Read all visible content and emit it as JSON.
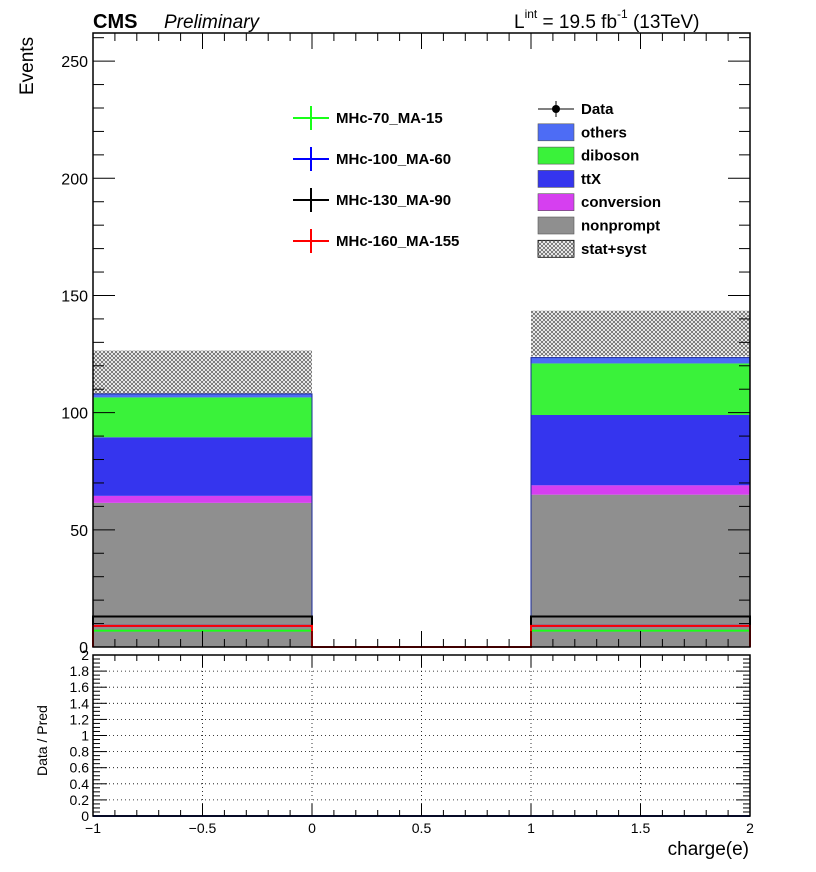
{
  "header": {
    "cms_label": "CMS",
    "preliminary_label": "Preliminary",
    "lumi_prefix": "L",
    "lumi_superscript": "int",
    "lumi_value": " = 19.5 fb",
    "lumi_exponent": "-1",
    "lumi_energy": " (13TeV)"
  },
  "colors": {
    "others": "#4d6cf5",
    "diboson": "#3af23a",
    "ttX": "#3535ee",
    "conversion": "#d63ff0",
    "nonprompt": "#8f8f8f",
    "MHc-70_MA-15": "#19ff19",
    "MHc-100_MA-60": "#0000ff",
    "MHc-130_MA-90": "#000000",
    "MHc-160_MA-155": "#ff0000"
  },
  "chart_data": [
    {
      "type": "bar",
      "stacked": true,
      "bins": [
        [
          -1,
          0
        ],
        [
          0,
          1
        ],
        [
          1,
          2
        ]
      ],
      "series": [
        {
          "name": "nonprompt",
          "values": [
            61.5,
            0,
            65
          ]
        },
        {
          "name": "conversion",
          "values": [
            3,
            0,
            4
          ]
        },
        {
          "name": "ttX",
          "values": [
            25,
            0,
            30
          ]
        },
        {
          "name": "diboson",
          "values": [
            17,
            0,
            22
          ]
        },
        {
          "name": "others",
          "values": [
            1.5,
            0,
            2.5
          ]
        }
      ],
      "uncertainty": {
        "name": "stat+syst",
        "up": [
          126.5,
          0,
          143.5
        ],
        "down": [
          108,
          0,
          124
        ]
      },
      "signals": [
        {
          "name": "MHc-70_MA-15",
          "values": [
            7,
            0,
            7
          ]
        },
        {
          "name": "MHc-100_MA-60",
          "values": [
            9,
            0,
            9
          ]
        },
        {
          "name": "MHc-130_MA-90",
          "values": [
            13,
            0,
            13
          ]
        },
        {
          "name": "MHc-160_MA-155",
          "values": [
            9,
            0,
            9
          ]
        }
      ],
      "data_entry": "Data",
      "xlim": [
        -1,
        2
      ],
      "ylim": [
        0,
        262
      ],
      "ylabel": "Events",
      "x_ticks": [
        -1,
        -0.5,
        0,
        0.5,
        1,
        1.5,
        2
      ],
      "x_tick_labels": [
        "−1",
        "−0.5",
        "0",
        "0.5",
        "1",
        "1.5",
        "2"
      ],
      "y_ticks": [
        0,
        50,
        100,
        150,
        200,
        250
      ],
      "y_tick_labels": [
        "0",
        "50",
        "100",
        "150",
        "200",
        "250"
      ],
      "legend_main": [
        "Data",
        "others",
        "diboson",
        "ttX",
        "conversion",
        "nonprompt",
        "stat+syst"
      ],
      "legend_signals": [
        "MHc-70_MA-15",
        "MHc-100_MA-60",
        "MHc-130_MA-90",
        "MHc-160_MA-155"
      ]
    },
    {
      "type": "line",
      "xlim": [
        -1,
        2
      ],
      "ylim": [
        0,
        2
      ],
      "xlabel": "charge(e)",
      "ylabel": "Data / Pred",
      "grid": true,
      "x_ticks": [
        -1,
        -0.5,
        0,
        0.5,
        1,
        1.5,
        2
      ],
      "x_tick_labels": [
        "−1",
        "−0.5",
        "0",
        "0.5",
        "1",
        "1.5",
        "2"
      ],
      "y_ticks": [
        0,
        0.2,
        0.4,
        0.6,
        0.8,
        1,
        1.2,
        1.4,
        1.6,
        1.8,
        2
      ],
      "y_tick_labels": [
        "0",
        "0.2",
        "0.4",
        "0.6",
        "0.8",
        "1",
        "1.2",
        "1.4",
        "1.6",
        "1.8",
        "2"
      ],
      "values": [
        0,
        0,
        0
      ]
    }
  ]
}
